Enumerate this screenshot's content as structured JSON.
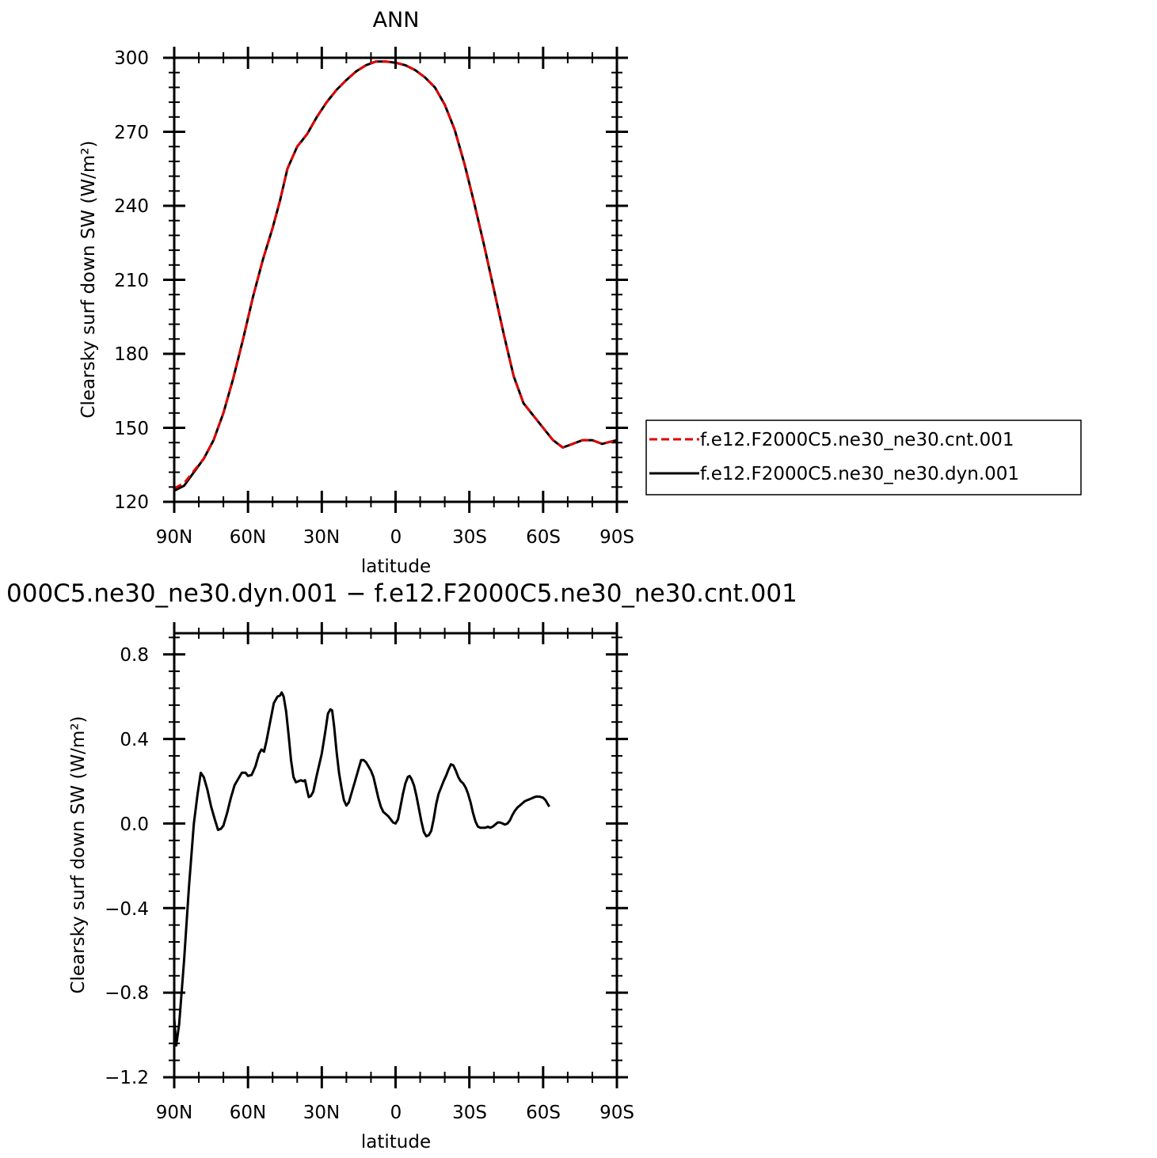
{
  "chart_data": [
    {
      "type": "line",
      "title": "ANN",
      "xlabel": "latitude",
      "ylabel": "Clearsky surf down SW (W/m²)",
      "xlim": [
        -90,
        90
      ],
      "ylim": [
        120,
        300
      ],
      "x_ticks": [
        {
          "value": -90,
          "label": "90N"
        },
        {
          "value": -60,
          "label": "60N"
        },
        {
          "value": -30,
          "label": "30N"
        },
        {
          "value": 0,
          "label": "0"
        },
        {
          "value": 30,
          "label": "30S"
        },
        {
          "value": 60,
          "label": "60S"
        },
        {
          "value": 90,
          "label": "90S"
        }
      ],
      "y_ticks": [
        {
          "value": 300,
          "label": "300"
        },
        {
          "value": 270,
          "label": "270"
        },
        {
          "value": 240,
          "label": "240"
        },
        {
          "value": 210,
          "label": "210"
        },
        {
          "value": 180,
          "label": "180"
        },
        {
          "value": 150,
          "label": "150"
        },
        {
          "value": 120,
          "label": "120"
        }
      ],
      "legend_position": "outside-right",
      "series": [
        {
          "name": "f.e12.F2000C5.ne30_ne30.cnt.001",
          "color": "#e00000",
          "dash": "dashed",
          "points": [
            [
              -90,
              125.5
            ],
            [
              -86,
              127.5
            ],
            [
              -82,
              132.5
            ],
            [
              -78,
              137.5
            ],
            [
              -74,
              145
            ],
            [
              -70,
              156
            ],
            [
              -66,
              170
            ],
            [
              -62,
              186
            ],
            [
              -58,
              203
            ],
            [
              -54,
              218
            ],
            [
              -50,
              231
            ],
            [
              -47,
              242
            ],
            [
              -44,
              255
            ],
            [
              -40,
              264
            ],
            [
              -36,
              269
            ],
            [
              -32,
              276
            ],
            [
              -28,
              282
            ],
            [
              -24,
              287
            ],
            [
              -20,
              291
            ],
            [
              -16,
              294.5
            ],
            [
              -12,
              297
            ],
            [
              -8,
              298.5
            ],
            [
              -4,
              298.5
            ],
            [
              0,
              298
            ],
            [
              4,
              297
            ],
            [
              8,
              295
            ],
            [
              12,
              292
            ],
            [
              16,
              288
            ],
            [
              20,
              281
            ],
            [
              24,
              271
            ],
            [
              28,
              257
            ],
            [
              32,
              241
            ],
            [
              36,
              224
            ],
            [
              40,
              206
            ],
            [
              44,
              188
            ],
            [
              48,
              171
            ],
            [
              52,
              160
            ],
            [
              56,
              155
            ],
            [
              60,
              150
            ],
            [
              64,
              145
            ],
            [
              68,
              142
            ],
            [
              72,
              143.5
            ],
            [
              76,
              145
            ],
            [
              80,
              145
            ],
            [
              84,
              143.5
            ],
            [
              88,
              144.5
            ],
            [
              90,
              145
            ]
          ]
        },
        {
          "name": "f.e12.F2000C5.ne30_ne30.dyn.001",
          "color": "#000000",
          "dash": "solid",
          "points": [
            [
              -90,
              124.5
            ],
            [
              -86,
              126.5
            ],
            [
              -82,
              132
            ],
            [
              -78,
              137.5
            ],
            [
              -74,
              145
            ],
            [
              -70,
              156
            ],
            [
              -66,
              170
            ],
            [
              -62,
              186
            ],
            [
              -58,
              203
            ],
            [
              -54,
              218
            ],
            [
              -50,
              231
            ],
            [
              -47,
              242
            ],
            [
              -44,
              255
            ],
            [
              -40,
              264
            ],
            [
              -36,
              269
            ],
            [
              -32,
              276
            ],
            [
              -28,
              282
            ],
            [
              -24,
              287
            ],
            [
              -20,
              291
            ],
            [
              -16,
              294.5
            ],
            [
              -12,
              297
            ],
            [
              -8,
              298.5
            ],
            [
              -4,
              298.5
            ],
            [
              0,
              298
            ],
            [
              4,
              297
            ],
            [
              8,
              295
            ],
            [
              12,
              292
            ],
            [
              16,
              288
            ],
            [
              20,
              281
            ],
            [
              24,
              271
            ],
            [
              28,
              257
            ],
            [
              32,
              241
            ],
            [
              36,
              224
            ],
            [
              40,
              206
            ],
            [
              44,
              188
            ],
            [
              48,
              171
            ],
            [
              52,
              160
            ],
            [
              56,
              155
            ],
            [
              60,
              150
            ],
            [
              64,
              145
            ],
            [
              68,
              142
            ],
            [
              72,
              143.5
            ],
            [
              76,
              145
            ],
            [
              80,
              145
            ],
            [
              84,
              143.5
            ],
            [
              88,
              144.5
            ],
            [
              90,
              145
            ]
          ]
        }
      ]
    },
    {
      "type": "line",
      "title": "000C5.ne30_ne30.dyn.001 − f.e12.F2000C5.ne30_ne30.cnt.001",
      "xlabel": "latitude",
      "ylabel": "Clearsky surf down SW (W/m²)",
      "xlim": [
        -90,
        90
      ],
      "ylim": [
        -1.2,
        0.9
      ],
      "x_ticks": [
        {
          "value": -90,
          "label": "90N"
        },
        {
          "value": -60,
          "label": "60N"
        },
        {
          "value": -30,
          "label": "30N"
        },
        {
          "value": 0,
          "label": "0"
        },
        {
          "value": 30,
          "label": "30S"
        },
        {
          "value": 60,
          "label": "60S"
        },
        {
          "value": 90,
          "label": "90S"
        }
      ],
      "y_ticks": [
        {
          "value": 0.8,
          "label": "0.8"
        },
        {
          "value": 0.4,
          "label": "0.4"
        },
        {
          "value": 0.0,
          "label": "0.0"
        },
        {
          "value": -0.4,
          "label": "−0.4"
        },
        {
          "value": -0.8,
          "label": "−0.8"
        },
        {
          "value": -1.2,
          "label": "−1.2"
        }
      ],
      "series": [
        {
          "color": "#000000",
          "dash": "solid",
          "points": [
            [
              -90,
              -0.92
            ],
            [
              -89.2,
              -1.05
            ],
            [
              -88,
              -0.95
            ],
            [
              -86,
              -0.65
            ],
            [
              -84,
              -0.3
            ],
            [
              -82,
              0.0
            ],
            [
              -80.5,
              0.14
            ],
            [
              -79.2,
              0.24
            ],
            [
              -78,
              0.22
            ],
            [
              -76.5,
              0.16
            ],
            [
              -75,
              0.08
            ],
            [
              -73.5,
              0.02
            ],
            [
              -72.2,
              -0.03
            ],
            [
              -71,
              -0.025
            ],
            [
              -70,
              -0.01
            ],
            [
              -68.5,
              0.05
            ],
            [
              -67,
              0.12
            ],
            [
              -65.5,
              0.18
            ],
            [
              -64,
              0.21
            ],
            [
              -62.5,
              0.24
            ],
            [
              -61,
              0.24
            ],
            [
              -60,
              0.225
            ],
            [
              -58.5,
              0.23
            ],
            [
              -57,
              0.27
            ],
            [
              -55.5,
              0.33
            ],
            [
              -54.5,
              0.35
            ],
            [
              -53.5,
              0.34
            ],
            [
              -52.5,
              0.39
            ],
            [
              -51,
              0.48
            ],
            [
              -49.5,
              0.57
            ],
            [
              -48,
              0.6
            ],
            [
              -47,
              0.605
            ],
            [
              -46.3,
              0.62
            ],
            [
              -45.5,
              0.6
            ],
            [
              -44.5,
              0.53
            ],
            [
              -43.5,
              0.42
            ],
            [
              -42.5,
              0.3
            ],
            [
              -41.5,
              0.22
            ],
            [
              -40.5,
              0.195
            ],
            [
              -39.5,
              0.2
            ],
            [
              -38.5,
              0.205
            ],
            [
              -37.5,
              0.2
            ],
            [
              -36.8,
              0.205
            ],
            [
              -36,
              0.16
            ],
            [
              -35.3,
              0.125
            ],
            [
              -34.5,
              0.13
            ],
            [
              -33.5,
              0.15
            ],
            [
              -32,
              0.23
            ],
            [
              -30,
              0.33
            ],
            [
              -28.5,
              0.44
            ],
            [
              -27.5,
              0.52
            ],
            [
              -26.5,
              0.54
            ],
            [
              -25.8,
              0.535
            ],
            [
              -25,
              0.46
            ],
            [
              -24,
              0.34
            ],
            [
              -23,
              0.24
            ],
            [
              -22,
              0.17
            ],
            [
              -21,
              0.11
            ],
            [
              -20,
              0.085
            ],
            [
              -19,
              0.1
            ],
            [
              -18,
              0.14
            ],
            [
              -16.5,
              0.2
            ],
            [
              -15,
              0.26
            ],
            [
              -14,
              0.3
            ],
            [
              -13,
              0.3
            ],
            [
              -12,
              0.29
            ],
            [
              -11,
              0.27
            ],
            [
              -10,
              0.25
            ],
            [
              -9,
              0.22
            ],
            [
              -8,
              0.17
            ],
            [
              -7,
              0.12
            ],
            [
              -6,
              0.08
            ],
            [
              -5,
              0.055
            ],
            [
              -4,
              0.045
            ],
            [
              -3,
              0.035
            ],
            [
              -2,
              0.02
            ],
            [
              -1,
              0.005
            ],
            [
              0,
              0.0
            ],
            [
              1,
              0.02
            ],
            [
              2,
              0.08
            ],
            [
              3,
              0.14
            ],
            [
              4,
              0.19
            ],
            [
              5,
              0.22
            ],
            [
              5.7,
              0.225
            ],
            [
              6.5,
              0.21
            ],
            [
              7.5,
              0.18
            ],
            [
              8.5,
              0.13
            ],
            [
              9.5,
              0.07
            ],
            [
              10.5,
              0.01
            ],
            [
              11.5,
              -0.04
            ],
            [
              12.5,
              -0.06
            ],
            [
              13.5,
              -0.055
            ],
            [
              14.5,
              -0.035
            ],
            [
              15.5,
              0.02
            ],
            [
              16.5,
              0.09
            ],
            [
              17.5,
              0.14
            ],
            [
              18.5,
              0.17
            ],
            [
              19.5,
              0.2
            ],
            [
              20.5,
              0.225
            ],
            [
              21.5,
              0.255
            ],
            [
              22.5,
              0.28
            ],
            [
              23.5,
              0.275
            ],
            [
              24.5,
              0.25
            ],
            [
              25.5,
              0.22
            ],
            [
              26.5,
              0.2
            ],
            [
              27.5,
              0.19
            ],
            [
              28.5,
              0.17
            ],
            [
              29.5,
              0.14
            ],
            [
              30.5,
              0.1
            ],
            [
              31.5,
              0.05
            ],
            [
              32.5,
              0.01
            ],
            [
              33.5,
              -0.015
            ],
            [
              34.5,
              -0.02
            ],
            [
              35.5,
              -0.02
            ],
            [
              36.5,
              -0.02
            ],
            [
              37.5,
              -0.015
            ],
            [
              38.5,
              -0.02
            ],
            [
              39.5,
              -0.015
            ],
            [
              40.5,
              -0.005
            ],
            [
              41.5,
              0.005
            ],
            [
              42.5,
              0.005
            ],
            [
              43.5,
              0.0
            ],
            [
              44.5,
              -0.005
            ],
            [
              45.5,
              0.0
            ],
            [
              46.5,
              0.015
            ],
            [
              47.5,
              0.04
            ],
            [
              48.5,
              0.06
            ],
            [
              49.5,
              0.075
            ],
            [
              50.5,
              0.085
            ],
            [
              51.5,
              0.095
            ],
            [
              52.5,
              0.105
            ],
            [
              53.5,
              0.11
            ],
            [
              54.5,
              0.115
            ],
            [
              55.5,
              0.12
            ],
            [
              56.5,
              0.125
            ],
            [
              57.5,
              0.128
            ],
            [
              58.5,
              0.127
            ],
            [
              59.2,
              0.125
            ],
            [
              60,
              0.122
            ],
            [
              61,
              0.11
            ],
            [
              62,
              0.09
            ],
            [
              62.5,
              0.08
            ]
          ]
        }
      ]
    }
  ]
}
